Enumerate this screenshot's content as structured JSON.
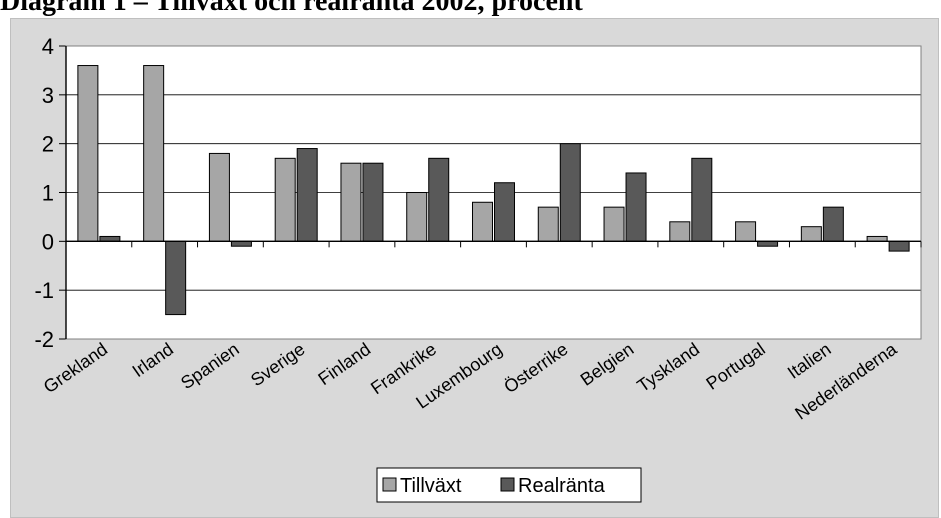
{
  "header": {
    "title": "Diagram 1 – Tillväxt och realränta 2002, procent"
  },
  "chart_data": {
    "type": "bar",
    "title": "",
    "xlabel": "",
    "ylabel": "",
    "ylim": [
      -2,
      4
    ],
    "yticks": [
      "4",
      "3",
      "2",
      "1",
      "0",
      "-1",
      "-2"
    ],
    "grid": true,
    "legend_position": "bottom",
    "categories": [
      "Grekland",
      "Irland",
      "Spanien",
      "Sverige",
      "Finland",
      "Frankrike",
      "Luxembourg",
      "Österrike",
      "Belgien",
      "Tyskland",
      "Portugal",
      "Italien",
      "Nederländerna"
    ],
    "series": [
      {
        "name": "Tillväxt",
        "color": "#a6a6a6",
        "values": [
          3.6,
          3.6,
          1.8,
          1.7,
          1.6,
          1.0,
          0.8,
          0.7,
          0.7,
          0.4,
          0.4,
          0.3,
          0.1
        ]
      },
      {
        "name": "Realränta",
        "color": "#595959",
        "values": [
          0.1,
          -1.5,
          -0.1,
          1.9,
          1.6,
          1.7,
          1.2,
          2.0,
          1.4,
          1.7,
          -0.1,
          0.7,
          -0.2
        ]
      }
    ]
  }
}
